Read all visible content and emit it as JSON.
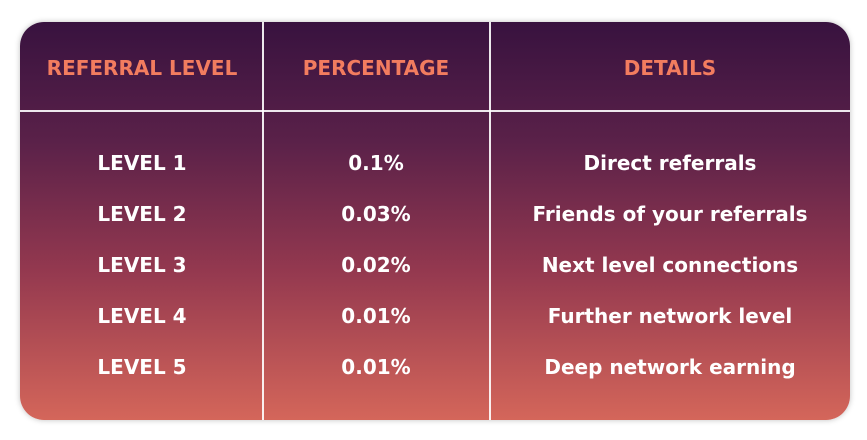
{
  "table": {
    "headers": [
      "REFERRAL LEVEL",
      "PERCENTAGE",
      "DETAILS"
    ],
    "rows": [
      [
        "LEVEL 1",
        "0.1%",
        "Direct referrals"
      ],
      [
        "LEVEL 2",
        "0.03%",
        "Friends of your referrals"
      ],
      [
        "LEVEL 3",
        "0.02%",
        "Next level connections"
      ],
      [
        "LEVEL 4",
        "0.01%",
        "Further network level"
      ],
      [
        "LEVEL 5",
        "0.01%",
        "Deep network earning"
      ]
    ]
  }
}
